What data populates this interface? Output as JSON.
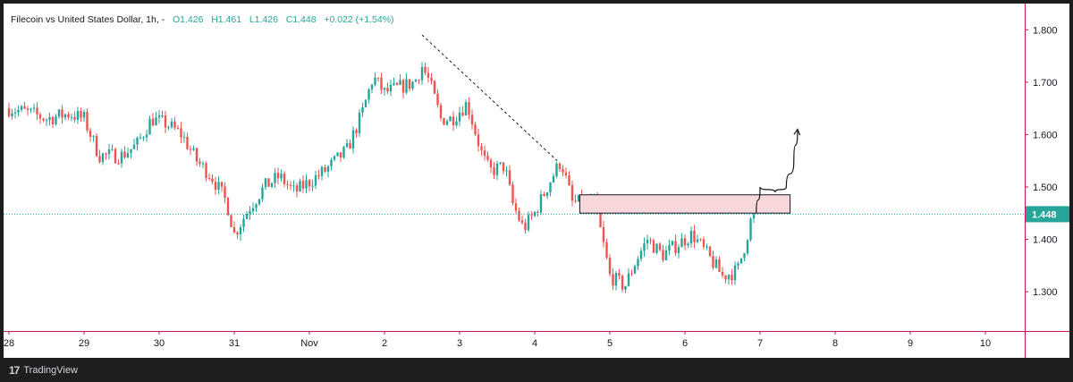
{
  "legend": {
    "symbol": "Filecoin vs United States Dollar",
    "interval": "1h",
    "separator": "-",
    "open": "O1.426",
    "high": "H1.461",
    "low": "L1.426",
    "close": "C1.448",
    "change": "+0.022 (+1.54%)"
  },
  "footer": {
    "brand": "TradingView"
  },
  "colors": {
    "up": "#26a69a",
    "down": "#ef5350",
    "axis": "#c2185b",
    "current_price_line": "#26a69a",
    "zone_fill": "#f8d7da",
    "zone_border": "#131722"
  },
  "chart_data": {
    "type": "candlestick",
    "title": "Filecoin vs United States Dollar, 1h",
    "x_ticks": [
      "28",
      "29",
      "30",
      "31",
      "Nov",
      "2",
      "3",
      "4",
      "5",
      "6",
      "7",
      "8",
      "9",
      "10"
    ],
    "y_ticks": [
      "1.800",
      "1.700",
      "1.600",
      "1.500",
      "1.400",
      "1.300"
    ],
    "ylim": [
      1.225,
      1.85
    ],
    "current_price": 1.448,
    "current_price_label": "1.448",
    "grid": false,
    "close_path": [
      [
        0.0,
        1.65
      ],
      [
        0.3,
        1.64
      ],
      [
        0.5,
        1.63
      ],
      [
        0.8,
        1.64
      ],
      [
        1.0,
        1.63
      ],
      [
        1.2,
        1.56
      ],
      [
        1.5,
        1.56
      ],
      [
        1.7,
        1.58
      ],
      [
        1.9,
        1.63
      ],
      [
        2.1,
        1.62
      ],
      [
        2.3,
        1.6
      ],
      [
        2.5,
        1.55
      ],
      [
        2.7,
        1.52
      ],
      [
        2.9,
        1.47
      ],
      [
        3.0,
        1.41
      ],
      [
        3.2,
        1.46
      ],
      [
        3.4,
        1.5
      ],
      [
        3.6,
        1.52
      ],
      [
        3.8,
        1.49
      ],
      [
        4.0,
        1.51
      ],
      [
        4.2,
        1.53
      ],
      [
        4.5,
        1.57
      ],
      [
        4.7,
        1.64
      ],
      [
        4.85,
        1.71
      ],
      [
        5.0,
        1.68
      ],
      [
        5.2,
        1.69
      ],
      [
        5.4,
        1.7
      ],
      [
        5.5,
        1.73
      ],
      [
        5.6,
        1.7
      ],
      [
        5.75,
        1.63
      ],
      [
        5.9,
        1.63
      ],
      [
        6.1,
        1.66
      ],
      [
        6.3,
        1.56
      ],
      [
        6.4,
        1.53
      ],
      [
        6.6,
        1.54
      ],
      [
        6.7,
        1.47
      ],
      [
        6.85,
        1.42
      ],
      [
        7.0,
        1.45
      ],
      [
        7.2,
        1.51
      ],
      [
        7.35,
        1.55
      ],
      [
        7.5,
        1.47
      ],
      [
        7.8,
        1.47
      ],
      [
        8.0,
        1.33
      ],
      [
        8.2,
        1.31
      ],
      [
        8.35,
        1.36
      ],
      [
        8.5,
        1.4
      ],
      [
        8.7,
        1.37
      ],
      [
        8.9,
        1.39
      ],
      [
        9.1,
        1.41
      ],
      [
        9.3,
        1.37
      ],
      [
        9.5,
        1.33
      ],
      [
        9.7,
        1.34
      ],
      [
        9.8,
        1.39
      ],
      [
        9.9,
        1.45
      ],
      [
        9.95,
        1.45
      ]
    ],
    "annotations": {
      "trendline": {
        "style": "dashed",
        "from": [
          5.5,
          1.79
        ],
        "to": [
          7.3,
          1.55
        ]
      },
      "zone": {
        "x": [
          7.6,
          10.4
        ],
        "y": [
          1.45,
          1.485
        ]
      },
      "projection": {
        "style": "arrow",
        "points": [
          [
            9.95,
            1.45
          ],
          [
            10.0,
            1.5
          ],
          [
            10.2,
            1.49
          ],
          [
            10.35,
            1.5
          ],
          [
            10.45,
            1.55
          ],
          [
            10.5,
            1.61
          ]
        ]
      }
    }
  }
}
